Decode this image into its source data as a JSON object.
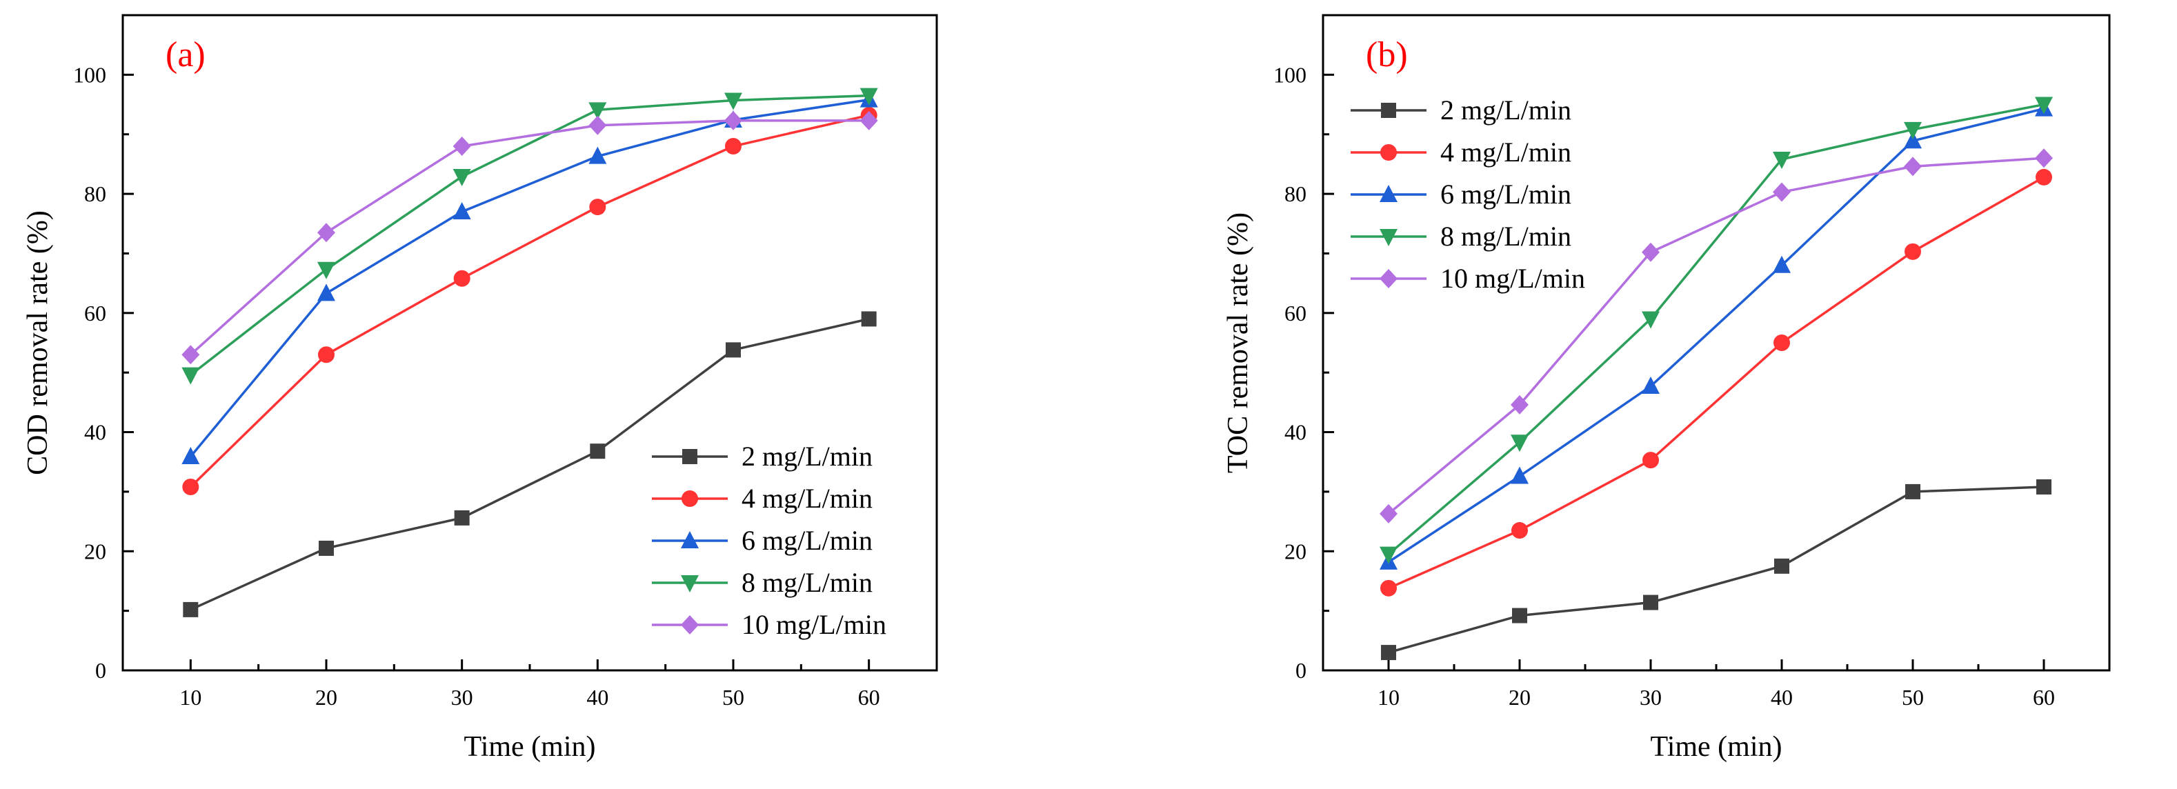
{
  "chart_data": [
    {
      "id": "a",
      "type": "line",
      "panel_label": "(a)",
      "xlabel": "Time (min)",
      "ylabel": "COD removal rate (%)",
      "xlim": [
        5,
        65
      ],
      "ylim": [
        0,
        110
      ],
      "x_ticks": [
        10,
        20,
        30,
        40,
        50,
        60
      ],
      "y_ticks": [
        0,
        20,
        40,
        60,
        80,
        100
      ],
      "x": [
        10,
        20,
        30,
        40,
        50,
        60
      ],
      "legend_position": "bottom-right",
      "series": [
        {
          "name": "2 mg/L/min",
          "color": "#404040",
          "marker": "square",
          "values": [
            10.2,
            20.5,
            25.6,
            36.8,
            53.8,
            59.0
          ]
        },
        {
          "name": "4 mg/L/min",
          "color": "#ff3333",
          "marker": "circle",
          "values": [
            30.8,
            53.0,
            65.8,
            77.8,
            88.0,
            93.2
          ]
        },
        {
          "name": "6 mg/L/min",
          "color": "#1f5fd6",
          "marker": "triangle-up",
          "values": [
            35.9,
            63.3,
            77.0,
            86.3,
            92.4,
            95.8
          ]
        },
        {
          "name": "8 mg/L/min",
          "color": "#2ca05a",
          "marker": "triangle-down",
          "values": [
            49.6,
            67.3,
            82.9,
            94.1,
            95.7,
            96.5
          ]
        },
        {
          "name": "10 mg/L/min",
          "color": "#b36ee0",
          "marker": "diamond",
          "values": [
            53.0,
            73.5,
            88.0,
            91.5,
            92.3,
            92.3
          ]
        }
      ]
    },
    {
      "id": "b",
      "type": "line",
      "panel_label": "(b)",
      "xlabel": "Time (min)",
      "ylabel": "TOC removal rate (%)",
      "xlim": [
        5,
        65
      ],
      "ylim": [
        0,
        110
      ],
      "x_ticks": [
        10,
        20,
        30,
        40,
        50,
        60
      ],
      "y_ticks": [
        0,
        20,
        40,
        60,
        80,
        100
      ],
      "x": [
        10,
        20,
        30,
        40,
        50,
        60
      ],
      "legend_position": "top-left",
      "series": [
        {
          "name": "2 mg/L/min",
          "color": "#404040",
          "marker": "square",
          "values": [
            3.0,
            9.2,
            11.4,
            17.5,
            30.0,
            30.8
          ]
        },
        {
          "name": "4 mg/L/min",
          "color": "#ff3333",
          "marker": "circle",
          "values": [
            13.8,
            23.5,
            35.3,
            55.0,
            70.3,
            82.8
          ]
        },
        {
          "name": "6 mg/L/min",
          "color": "#1f5fd6",
          "marker": "triangle-up",
          "values": [
            18.2,
            32.6,
            47.7,
            68.0,
            88.9,
            94.3
          ]
        },
        {
          "name": "8 mg/L/min",
          "color": "#2ca05a",
          "marker": "triangle-down",
          "values": [
            19.5,
            38.3,
            59.0,
            85.8,
            90.8,
            95.0
          ]
        },
        {
          "name": "10 mg/L/min",
          "color": "#b36ee0",
          "marker": "diamond",
          "values": [
            26.3,
            44.6,
            70.2,
            80.3,
            84.6,
            86.0
          ]
        }
      ]
    }
  ]
}
